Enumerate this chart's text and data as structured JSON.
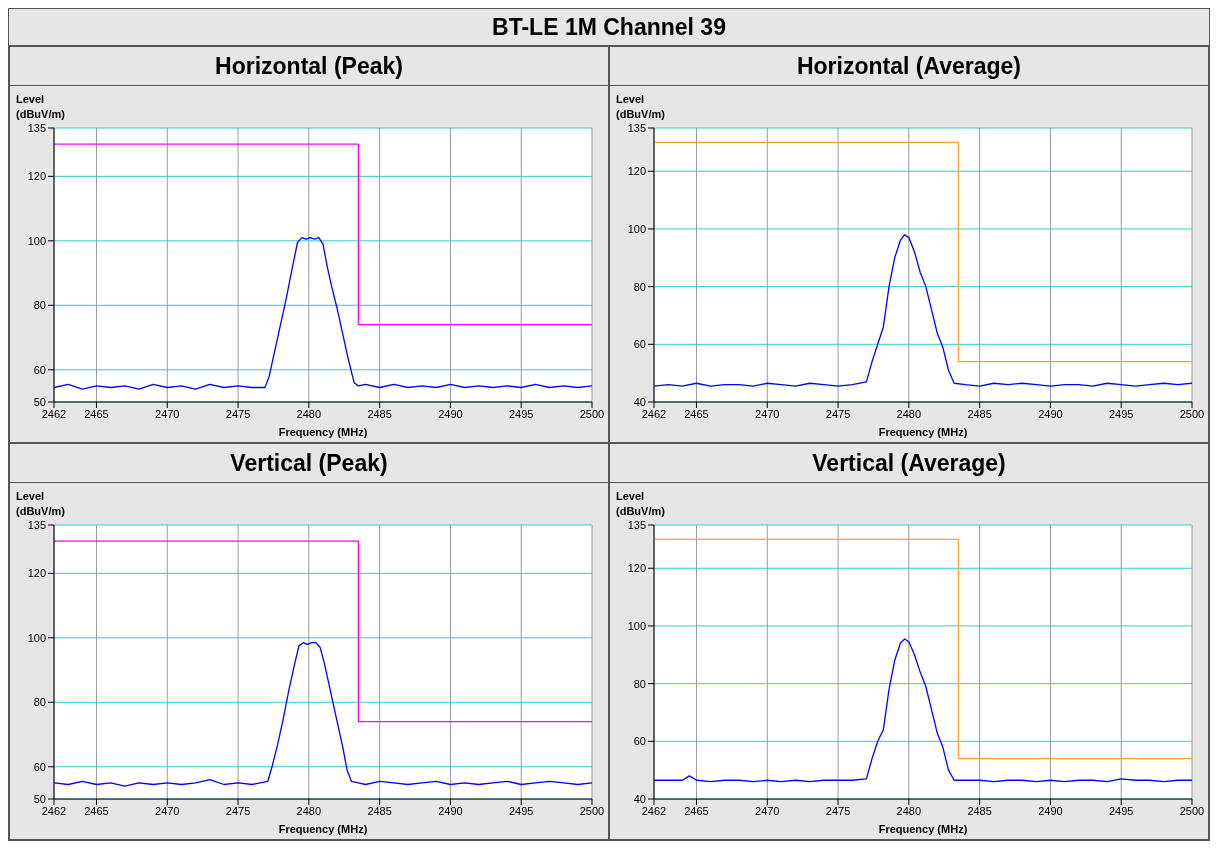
{
  "chart_data": [
    {
      "type": "line",
      "title": "Horizontal (Peak)",
      "annotations": [
        "BT-LE 1M Channel 39"
      ],
      "xlabel": "Frequency (MHz)",
      "ylabel": "Level (dBuV/m)",
      "xlim": [
        2462,
        2500
      ],
      "xticks": [
        2462,
        2465,
        2470,
        2475,
        2480,
        2485,
        2490,
        2495,
        2500
      ],
      "ylim": [
        50,
        135
      ],
      "yticks": [
        50,
        60,
        80,
        100,
        120,
        135
      ],
      "grid": true,
      "series": [
        {
          "type": "line",
          "color": "#0000ff",
          "x": [
            2462,
            2463,
            2464,
            2465,
            2466,
            2467,
            2468,
            2469,
            2470,
            2471,
            2472,
            2473,
            2474,
            2475,
            2476,
            2476.9,
            2477.2,
            2477.6,
            2478,
            2478.4,
            2478.8,
            2479.2,
            2479.5,
            2479.8,
            2480.1,
            2480.4,
            2480.7,
            2481,
            2481.3,
            2481.6,
            2482,
            2482.4,
            2482.8,
            2483.2,
            2483.5,
            2484,
            2485,
            2486,
            2487,
            2488,
            2489,
            2490,
            2491,
            2492,
            2493,
            2494,
            2495,
            2496,
            2497,
            2498,
            2499,
            2500
          ],
          "values": [
            54.5,
            55.5,
            54,
            55,
            54.5,
            55,
            54,
            55.5,
            54.5,
            55,
            54,
            55.5,
            54.5,
            55,
            54.5,
            54.5,
            58,
            66,
            74,
            82,
            91,
            99.5,
            101,
            100.5,
            101,
            100.5,
            101,
            99,
            92,
            86,
            79,
            71,
            63,
            56,
            55,
            55.5,
            54.5,
            55.5,
            54.5,
            55,
            54.5,
            55.5,
            54.5,
            55,
            54.5,
            55,
            54.5,
            55.5,
            54.5,
            55,
            54.5,
            55
          ]
        },
        {
          "type": "step",
          "color": "#ff00ff",
          "x": [
            2462,
            2483.5,
            2500
          ],
          "values": [
            130,
            74,
            74
          ]
        }
      ]
    },
    {
      "type": "line",
      "title": "Horizontal (Average)",
      "xlabel": "Frequency (MHz)",
      "ylabel": "Level (dBuV/m)",
      "xlim": [
        2462,
        2500
      ],
      "xticks": [
        2462,
        2465,
        2470,
        2475,
        2480,
        2485,
        2490,
        2495,
        2500
      ],
      "ylim": [
        40,
        135
      ],
      "yticks": [
        40,
        60,
        80,
        100,
        120,
        135
      ],
      "grid": true,
      "series": [
        {
          "type": "line",
          "color": "#0000ff",
          "x": [
            2462,
            2463,
            2464,
            2465,
            2466,
            2467,
            2468,
            2469,
            2470,
            2471,
            2472,
            2473,
            2474,
            2475,
            2476,
            2477,
            2477.4,
            2477.8,
            2478.2,
            2478.6,
            2479,
            2479.4,
            2479.7,
            2480,
            2480.4,
            2480.8,
            2481.2,
            2481.6,
            2482,
            2482.4,
            2482.8,
            2483.2,
            2484,
            2485,
            2486,
            2487,
            2488,
            2489,
            2490,
            2491,
            2492,
            2493,
            2494,
            2495,
            2496,
            2497,
            2498,
            2499,
            2500
          ],
          "values": [
            45.5,
            46,
            45.5,
            46.5,
            45.5,
            46,
            46,
            45.5,
            46.5,
            46,
            45.5,
            46.5,
            46,
            45.5,
            46,
            47,
            54,
            60,
            66,
            80,
            90,
            96,
            98,
            97,
            92,
            85,
            80,
            72,
            64,
            59,
            51,
            46.5,
            46,
            45.5,
            46.5,
            46,
            46.5,
            46,
            45.5,
            46,
            46,
            45.5,
            46.5,
            46,
            45.5,
            46,
            46.5,
            46,
            46.5
          ]
        },
        {
          "type": "step",
          "color": "#ffa030",
          "x": [
            2462,
            2483.5,
            2500
          ],
          "values": [
            130,
            54,
            54
          ]
        }
      ]
    },
    {
      "type": "line",
      "title": "Vertical (Peak)",
      "xlabel": "Frequency (MHz)",
      "ylabel": "Level (dBuV/m)",
      "xlim": [
        2462,
        2500
      ],
      "xticks": [
        2462,
        2465,
        2470,
        2475,
        2480,
        2485,
        2490,
        2495,
        2500
      ],
      "ylim": [
        50,
        135
      ],
      "yticks": [
        50,
        60,
        80,
        100,
        120,
        135
      ],
      "grid": true,
      "series": [
        {
          "type": "line",
          "color": "#0000ff",
          "x": [
            2462,
            2463,
            2464,
            2465,
            2466,
            2467,
            2468,
            2469,
            2470,
            2471,
            2472,
            2473,
            2474,
            2475,
            2476,
            2477.1,
            2477.4,
            2477.8,
            2478.2,
            2478.6,
            2479,
            2479.3,
            2479.6,
            2479.9,
            2480.2,
            2480.5,
            2480.8,
            2481.1,
            2481.4,
            2481.7,
            2482.1,
            2482.4,
            2482.7,
            2483,
            2483.5,
            2484,
            2485,
            2486,
            2487,
            2488,
            2489,
            2490,
            2491,
            2492,
            2493,
            2494,
            2495,
            2496,
            2497,
            2498,
            2499,
            2500
          ],
          "values": [
            55,
            54.5,
            55.5,
            54.5,
            55,
            54,
            55,
            54.5,
            55,
            54.5,
            55,
            56,
            54.5,
            55,
            54.5,
            55.5,
            60,
            67,
            75,
            84,
            92,
            97.5,
            98.5,
            98,
            98.5,
            98.5,
            97,
            92,
            86,
            80,
            72,
            66,
            59,
            55.5,
            55,
            54.5,
            55.5,
            55,
            54.5,
            55,
            55.5,
            54.5,
            55,
            54.5,
            55,
            55.5,
            54.5,
            55,
            55.5,
            55,
            54.5,
            55
          ]
        },
        {
          "type": "step",
          "color": "#ff00ff",
          "x": [
            2462,
            2483.5,
            2500
          ],
          "values": [
            130,
            74,
            74
          ]
        }
      ]
    },
    {
      "type": "line",
      "title": "Vertical (Average)",
      "xlabel": "Frequency (MHz)",
      "ylabel": "Level (dBuV/m)",
      "xlim": [
        2462,
        2500
      ],
      "xticks": [
        2462,
        2465,
        2470,
        2475,
        2480,
        2485,
        2490,
        2495,
        2500
      ],
      "ylim": [
        40,
        135
      ],
      "yticks": [
        40,
        60,
        80,
        100,
        120,
        135
      ],
      "grid": true,
      "series": [
        {
          "type": "line",
          "color": "#0000ff",
          "x": [
            2462,
            2463,
            2464,
            2464.5,
            2465,
            2466,
            2467,
            2468,
            2469,
            2470,
            2471,
            2472,
            2473,
            2474,
            2475,
            2476,
            2477,
            2477.4,
            2477.8,
            2478.2,
            2478.6,
            2479,
            2479.4,
            2479.7,
            2480,
            2480.4,
            2480.8,
            2481.2,
            2481.6,
            2482,
            2482.4,
            2482.8,
            2483.2,
            2484,
            2485,
            2486,
            2487,
            2488,
            2489,
            2490,
            2491,
            2492,
            2493,
            2494,
            2495,
            2496,
            2497,
            2498,
            2499,
            2500
          ],
          "values": [
            46.5,
            46.5,
            46.5,
            48,
            46.5,
            46,
            46.5,
            46.5,
            46,
            46.5,
            46,
            46.5,
            46,
            46.5,
            46.5,
            46.5,
            47,
            54,
            60,
            64,
            78,
            88,
            94,
            95.5,
            94.5,
            90,
            84,
            79,
            71,
            63,
            58,
            50,
            46.5,
            46.5,
            46.5,
            46,
            46.5,
            46.5,
            46,
            46.5,
            46,
            46.5,
            46.5,
            46,
            47,
            46.5,
            46.5,
            46,
            46.5,
            46.5
          ]
        },
        {
          "type": "step",
          "color": "#ffa030",
          "x": [
            2462,
            2483.5,
            2500
          ],
          "values": [
            130,
            54,
            54
          ]
        }
      ]
    }
  ]
}
